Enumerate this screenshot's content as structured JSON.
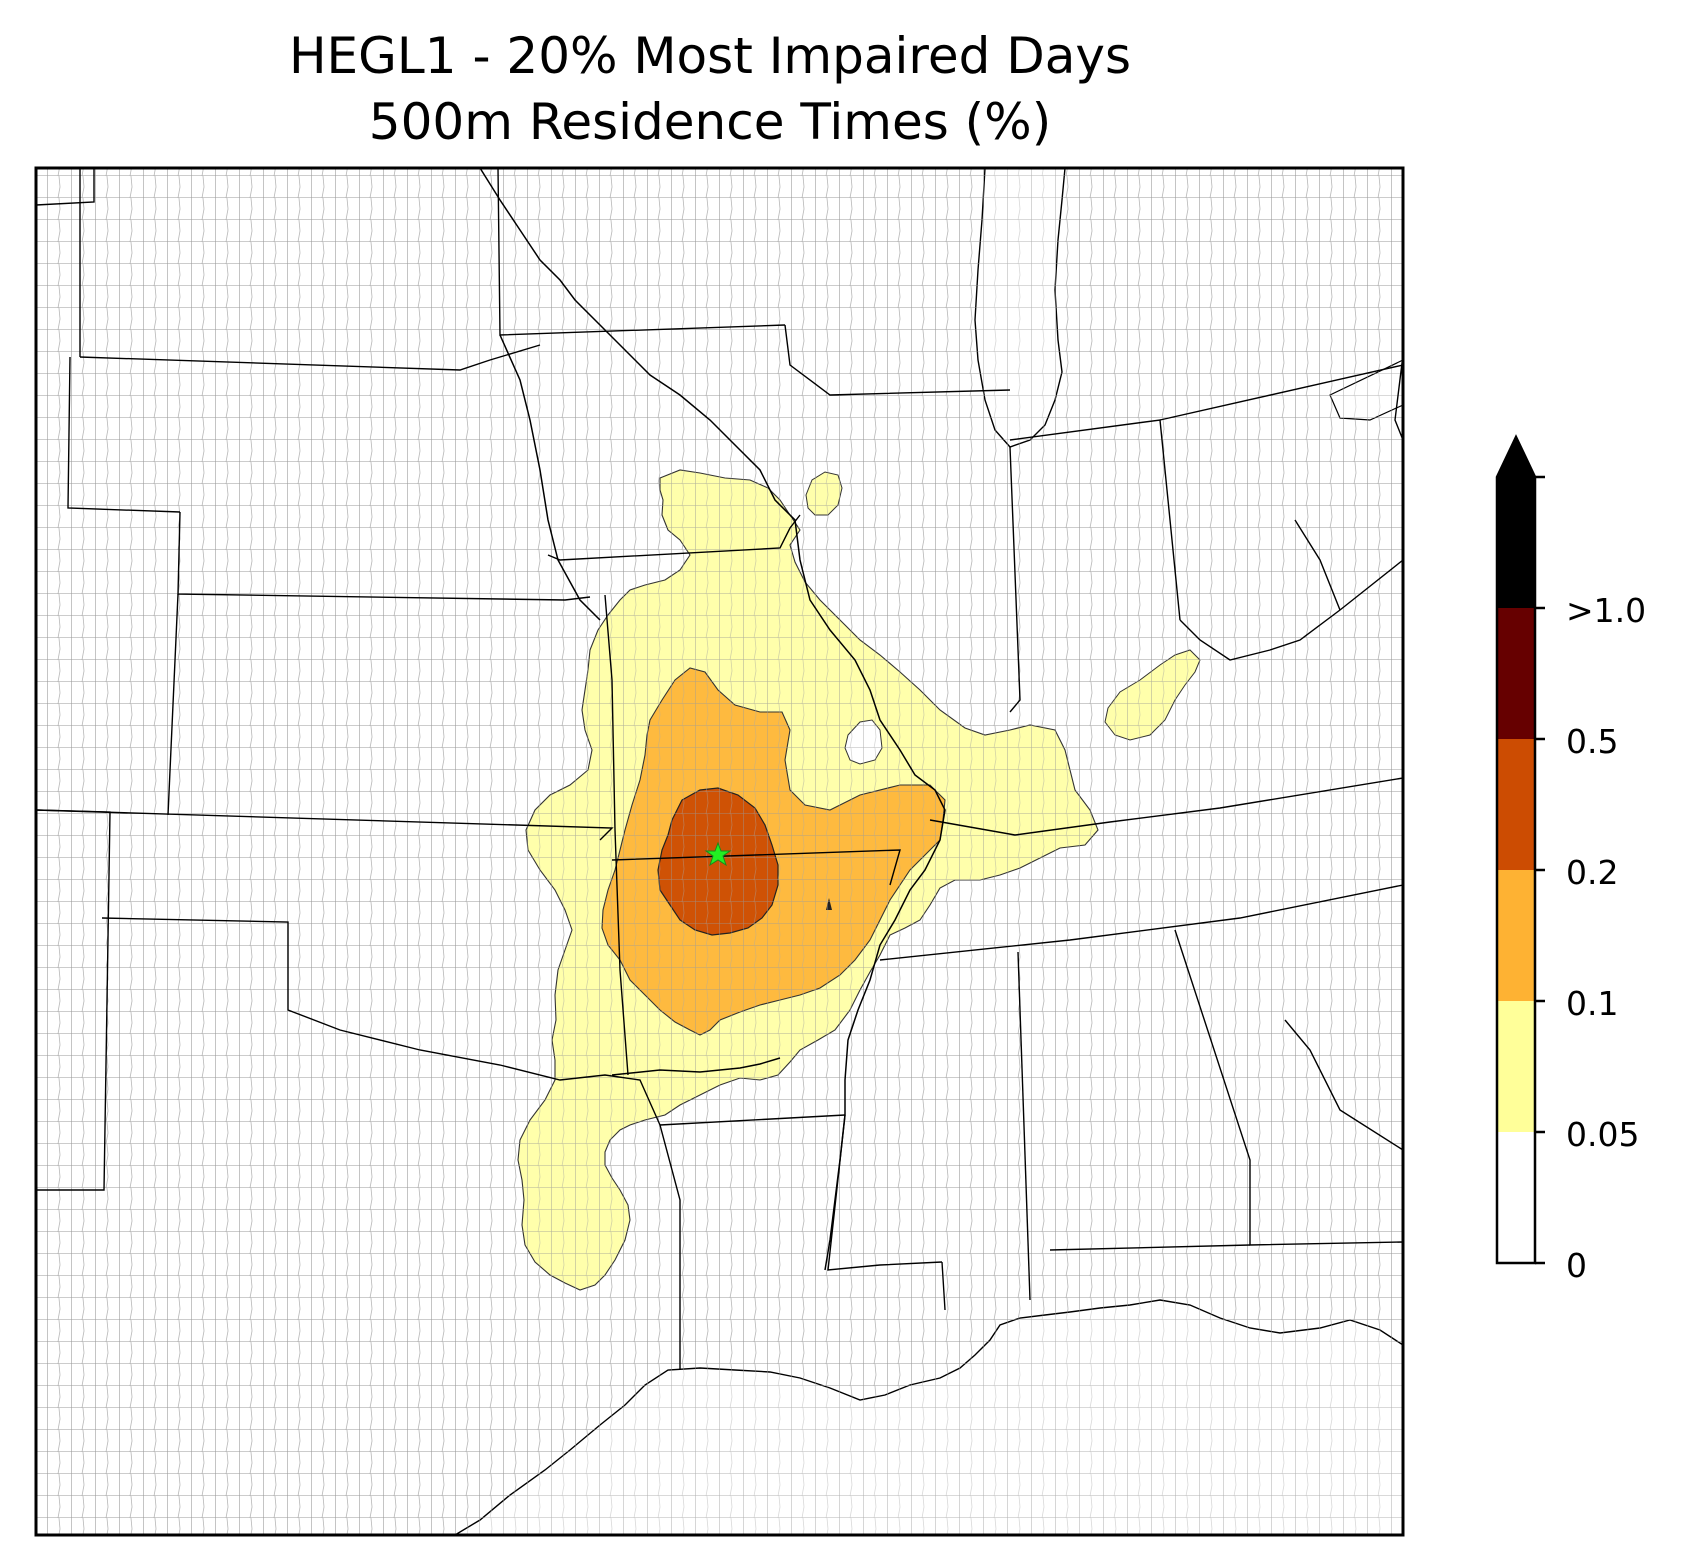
{
  "title": {
    "line1": "HEGL1 - 20% Most Impaired Days",
    "line2": "500m Residence Times (%)"
  },
  "site_marker": {
    "color": "#22ee22",
    "icon": "star-icon"
  },
  "colorbar": {
    "extend": "max",
    "bins": [
      {
        "range": "0-0.05",
        "color": "#ffffff"
      },
      {
        "range": "0.05-0.1",
        "color": "#ffff99"
      },
      {
        "range": "0.1-0.2",
        "color": "#feb233"
      },
      {
        "range": "0.2-0.5",
        "color": "#cc4c02"
      },
      {
        "range": "0.5-1.0",
        "color": "#660000"
      },
      {
        "range": ">1.0",
        "color": "#000000"
      }
    ],
    "tick_labels": [
      ">1.0",
      "0.5",
      "0.2",
      "0.1",
      "0.05",
      "0"
    ]
  },
  "contour_colors": {
    "level_005": "#ffff99",
    "level_01": "#feb233",
    "level_02": "#cc4c02"
  }
}
